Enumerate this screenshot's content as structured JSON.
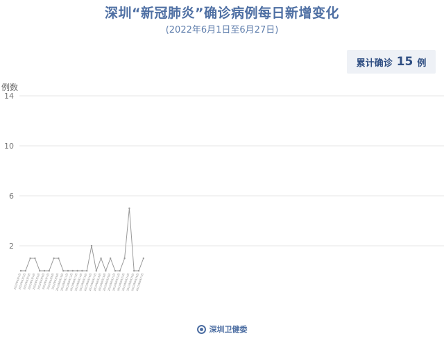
{
  "title": "深圳“新冠肺炎”确诊病例每日新增变化",
  "subtitle": "(2022年6月1日至6月27日)",
  "summary": {
    "label": "累计确诊",
    "value": "15",
    "unit": "例"
  },
  "footer": {
    "source": "深圳卫健委",
    "logo_icon": "shenzhen-health-logo-icon"
  },
  "colors": {
    "title": "#4e6fa3",
    "line": "#999999",
    "grid": "#e6e6e6",
    "box_bg": "#eef1f6"
  },
  "chart_data": {
    "type": "line",
    "title": "",
    "xlabel": "",
    "ylabel": "例数",
    "ylim": [
      0,
      15
    ],
    "yticks": [
      2,
      6,
      10,
      14
    ],
    "grid": true,
    "categories": [
      "2022年6月1日",
      "2022年6月2日",
      "2022年6月3日",
      "2022年6月4日",
      "2022年6月5日",
      "2022年6月6日",
      "2022年6月7日",
      "2022年6月8日",
      "2022年6月9日",
      "2022年6月10日",
      "2022年6月11日",
      "2022年6月12日",
      "2022年6月13日",
      "2022年6月14日",
      "2022年6月15日",
      "2022年6月16日",
      "2022年6月17日",
      "2022年6月18日",
      "2022年6月19日",
      "2022年6月20日",
      "2022年6月21日",
      "2022年6月22日",
      "2022年6月23日",
      "2022年6月24日",
      "2022年6月25日",
      "2022年6月26日",
      "2022年6月27日"
    ],
    "series": [
      {
        "values": [
          0,
          0,
          1,
          1,
          0,
          0,
          0,
          1,
          1,
          0,
          0,
          0,
          0,
          0,
          0,
          2,
          0,
          1,
          0,
          1,
          0,
          0,
          1,
          5,
          0,
          0,
          1
        ]
      }
    ]
  }
}
